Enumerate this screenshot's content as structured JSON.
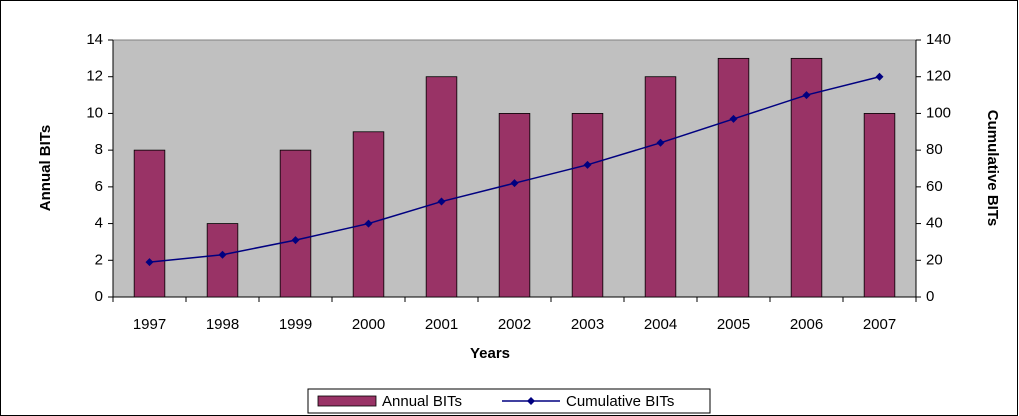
{
  "chart_data": {
    "type": "bar",
    "categories": [
      "1997",
      "1998",
      "1999",
      "2000",
      "2001",
      "2002",
      "2003",
      "2004",
      "2005",
      "2006",
      "2007"
    ],
    "series": [
      {
        "name": "Annual BITs",
        "type": "bar",
        "color": "#993366",
        "values": [
          8,
          4,
          8,
          9,
          12,
          10,
          10,
          12,
          13,
          13,
          10
        ]
      },
      {
        "name": "Cumulative BITs",
        "type": "line",
        "axis": "y2",
        "color": "#000080",
        "values": [
          19,
          23,
          31,
          40,
          52,
          62,
          72,
          84,
          97,
          110,
          120
        ]
      }
    ],
    "xlabel": "Years",
    "ylabel": "Annual BITs",
    "y2label": "Cumulative BITs",
    "ylim": [
      0,
      14
    ],
    "yticks": [
      0,
      2,
      4,
      6,
      8,
      10,
      12,
      14
    ],
    "y2lim": [
      0,
      140
    ],
    "y2ticks": [
      0,
      20,
      40,
      60,
      80,
      100,
      120,
      140
    ],
    "legend": "bottom",
    "plot_background": "#c0c0c0",
    "grid": false
  }
}
